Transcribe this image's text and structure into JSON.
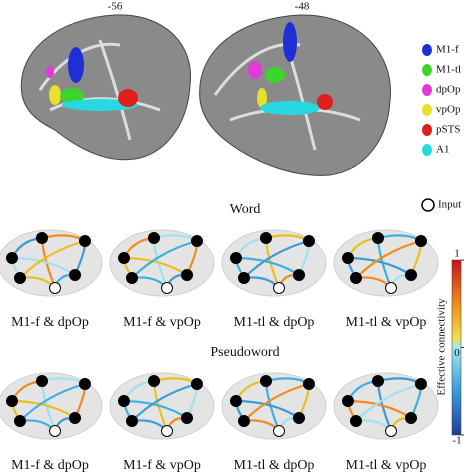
{
  "brain_slices": [
    {
      "label": "-56"
    },
    {
      "label": "-48"
    }
  ],
  "legend": [
    {
      "label": "M1-f",
      "color": "#1f2fd6"
    },
    {
      "label": "M1-tl",
      "color": "#3cd62a"
    },
    {
      "label": "dpOp",
      "color": "#e23ad8"
    },
    {
      "label": "vpOp",
      "color": "#e8e02a"
    },
    {
      "label": "pSTS",
      "color": "#e01e1e"
    },
    {
      "label": "A1",
      "color": "#28d8e0"
    }
  ],
  "input_label": "Input",
  "sections": [
    {
      "title": "Word",
      "panels": [
        "M1-f & dpOp",
        "M1-f & vpOp",
        "M1-tl & dpOp",
        "M1-tl & vpOp"
      ]
    },
    {
      "title": "Pseudoword",
      "panels": [
        "M1-f & dpOp",
        "M1-f & vpOp",
        "M1-tl & dpOp",
        "M1-tl & vpOp"
      ]
    }
  ],
  "colorbar": {
    "title": "Effective connectivity",
    "ticks": [
      1,
      0,
      -1
    ]
  }
}
